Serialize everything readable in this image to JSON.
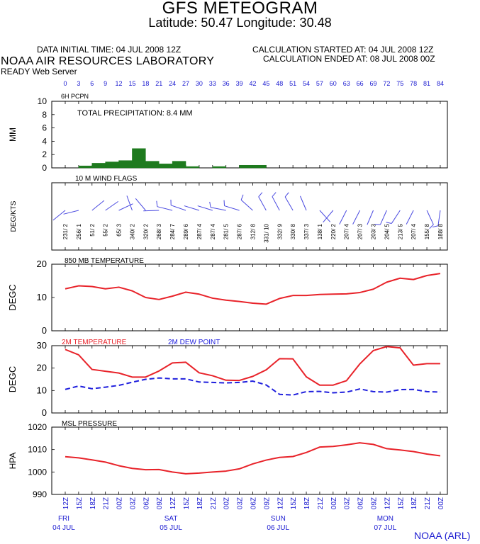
{
  "header": {
    "title": "GFS METEOGRAM",
    "lat_lon": "Latitude: 50.47 Longitude:  30.48",
    "data_initial": "DATA INITIAL TIME: 04 JUL 2008 12Z",
    "calc_started": "CALCULATION STARTED AT: 04 JUL 2008 12Z",
    "calc_ended": "CALCULATION ENDED AT: 08 JUL 2008 00Z",
    "lab": "NOAA AIR RESOURCES LABORATORY",
    "server": "READY Web Server"
  },
  "footer": "NOAA (ARL)",
  "colors": {
    "bar": "#1e7a1e",
    "red": "#e8232a",
    "blue": "#1f1fdd",
    "tick_text": "#1a1ad0",
    "flag": "#4a4ae0"
  },
  "chart_data": [
    {
      "type": "bar",
      "panel": "precip",
      "label": "6H PCPN",
      "annotation": "TOTAL PRECIPITATION:   8.4 MM",
      "ylabel": "MM",
      "ylim": [
        0,
        10
      ],
      "yticks": [
        "0",
        "2",
        "4",
        "6",
        "8",
        "10"
      ],
      "x": [
        3,
        6,
        9,
        12,
        15,
        18,
        21,
        24,
        27,
        30,
        33,
        36,
        39,
        42,
        45
      ],
      "values": [
        0,
        0.3,
        0.7,
        0.9,
        1.1,
        2.9,
        1.0,
        0.6,
        1.0,
        0.2,
        0,
        0.2,
        0,
        0.4,
        0.4
      ]
    },
    {
      "type": "table",
      "panel": "wind",
      "label": "10 M  WIND FLAGS",
      "ylabel": "DEG/KTS",
      "x": [
        0,
        3,
        6,
        9,
        12,
        15,
        18,
        21,
        24,
        27,
        30,
        33,
        36,
        39,
        42,
        45,
        48,
        51,
        54,
        57,
        60,
        63,
        66,
        69,
        72,
        75,
        78,
        81,
        84
      ],
      "labels": [
        "231/ 2",
        "256/ 1",
        "51/ 2",
        "55/ 2",
        "65/ 3",
        "340/ 2",
        "320/ 2",
        "268/ 3",
        "284/ 7",
        "289/ 6",
        "287/ 4",
        "287/ 4",
        "281/ 5",
        "287/ 6",
        "312/ 8",
        "331/ 10",
        "332/ 9",
        "330/ 8",
        "337/ 3",
        "138/ 1",
        "220/ 2",
        "207/ 4",
        "207/ 3",
        "203/ 3",
        "204/ 5",
        "213/ 5",
        "207/ 4",
        "155/ 8",
        "188/ 8"
      ]
    },
    {
      "type": "line",
      "panel": "t850",
      "label": "850 MB  TEMPERATURE",
      "ylabel": "DEGC",
      "ylim": [
        0,
        20
      ],
      "yticks": [
        "0",
        "10",
        "20"
      ],
      "x": [
        0,
        3,
        6,
        9,
        12,
        15,
        18,
        21,
        24,
        27,
        30,
        33,
        36,
        39,
        42,
        45,
        48,
        51,
        54,
        57,
        60,
        63,
        66,
        69,
        72,
        75,
        78,
        81,
        84
      ],
      "values": [
        12.6,
        13.5,
        13.3,
        12.6,
        13.1,
        12.0,
        10.0,
        9.4,
        10.4,
        11.6,
        11.0,
        9.8,
        9.2,
        8.8,
        8.3,
        8.0,
        9.7,
        10.6,
        10.6,
        10.9,
        11.0,
        11.1,
        11.5,
        12.5,
        14.6,
        15.8,
        15.4,
        16.6,
        17.2
      ]
    },
    {
      "type": "line",
      "panel": "t2m",
      "ylabel": "DEGC",
      "ylim": [
        0,
        30
      ],
      "yticks": [
        "0",
        "10",
        "20",
        "30"
      ],
      "x": [
        0,
        3,
        6,
        9,
        12,
        15,
        18,
        21,
        24,
        27,
        30,
        33,
        36,
        39,
        42,
        45,
        48,
        51,
        54,
        57,
        60,
        63,
        66,
        69,
        72,
        75,
        78,
        81,
        84
      ],
      "series": [
        {
          "name": "2M TEMPERATURE",
          "color": "#e8232a",
          "dash": false,
          "values": [
            28.3,
            25.9,
            19.4,
            18.6,
            17.8,
            16.0,
            16.0,
            18.7,
            22.3,
            22.6,
            17.9,
            16.6,
            14.6,
            14.5,
            16.3,
            19.2,
            24.2,
            24.1,
            16.1,
            12.4,
            12.4,
            14.4,
            21.9,
            27.8,
            29.6,
            29.0,
            21.3,
            22.0,
            22.0
          ]
        },
        {
          "name": "2M  DEW POINT",
          "color": "#1f1fdd",
          "dash": true,
          "values": [
            10.5,
            12.0,
            10.8,
            11.5,
            12.3,
            13.7,
            15.0,
            15.6,
            15.2,
            15.2,
            13.8,
            13.6,
            13.4,
            13.6,
            14.2,
            12.5,
            8.3,
            8.0,
            9.5,
            9.6,
            9.0,
            9.3,
            10.7,
            9.5,
            9.3,
            10.4,
            10.5,
            9.5,
            9.3
          ]
        }
      ]
    },
    {
      "type": "line",
      "panel": "mslp",
      "label": "MSL PRESSURE",
      "ylabel": "HPA",
      "ylim": [
        990,
        1020
      ],
      "yticks": [
        "990",
        "1000",
        "1010",
        "1020"
      ],
      "x": [
        0,
        3,
        6,
        9,
        12,
        15,
        18,
        21,
        24,
        27,
        30,
        33,
        36,
        39,
        42,
        45,
        48,
        51,
        54,
        57,
        60,
        63,
        66,
        69,
        72,
        75,
        78,
        81,
        84
      ],
      "values": [
        1006.8,
        1006.3,
        1005.4,
        1004.4,
        1002.8,
        1001.6,
        1001.0,
        1001.1,
        1000.0,
        999.2,
        999.5,
        1000.0,
        1000.4,
        1001.4,
        1003.6,
        1005.3,
        1006.5,
        1006.9,
        1008.7,
        1011.1,
        1011.4,
        1012.1,
        1013.0,
        1012.3,
        1010.4,
        1009.8,
        1009.1,
        1008.0,
        1007.2
      ]
    },
    {
      "type": "axis",
      "panel": "time",
      "top_ticks": [
        "0",
        "3",
        "6",
        "9",
        "12",
        "15",
        "18",
        "21",
        "24",
        "27",
        "30",
        "33",
        "36",
        "39",
        "42",
        "45",
        "48",
        "51",
        "54",
        "57",
        "60",
        "63",
        "66",
        "69",
        "72",
        "75",
        "78",
        "81",
        "84"
      ],
      "bottom_ticks": [
        "12Z",
        "15Z",
        "18Z",
        "21Z",
        "00Z",
        "03Z",
        "06Z",
        "09Z",
        "12Z",
        "15Z",
        "18Z",
        "21Z",
        "00Z",
        "03Z",
        "06Z",
        "09Z",
        "12Z",
        "15Z",
        "18Z",
        "21Z",
        "00Z",
        "03Z",
        "06Z",
        "09Z",
        "12Z",
        "15Z",
        "18Z",
        "21Z",
        "00Z"
      ],
      "days": [
        {
          "index": 0,
          "day": "FRI",
          "date": "04 JUL"
        },
        {
          "index": 8,
          "day": "SAT",
          "date": "05 JUL"
        },
        {
          "index": 16,
          "day": "SUN",
          "date": "06 JUL"
        },
        {
          "index": 24,
          "day": "MON",
          "date": "07 JUL"
        }
      ]
    }
  ]
}
